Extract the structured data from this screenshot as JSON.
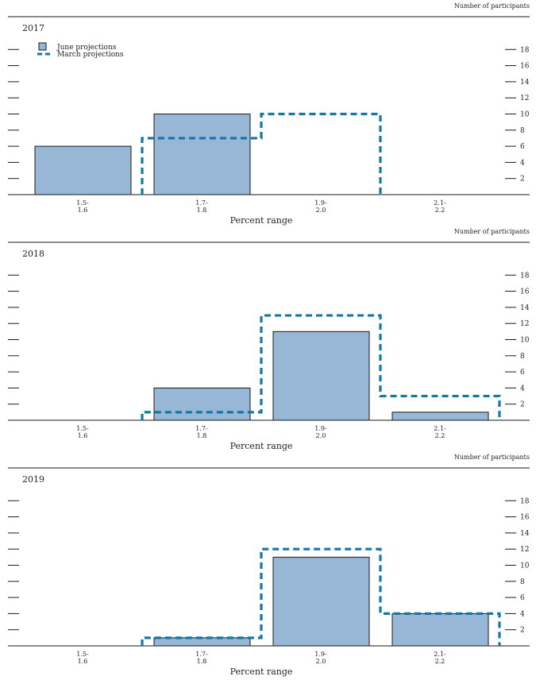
{
  "colors": {
    "june_fill": "#98b6d6",
    "june_stroke": "#1a1a1a",
    "march_stroke": "#1577a8",
    "axis": "#1a1a1a"
  },
  "legend": {
    "june_label": "June projections",
    "march_label": "March projections"
  },
  "chart_data": [
    {
      "type": "bar",
      "title": "2017",
      "ylabel": "Number of participants",
      "xlabel": "Percent range",
      "categories": [
        "1.5-\n1.6",
        "1.7-\n1.8",
        "1.9-\n2.0",
        "2.1-\n2.2"
      ],
      "yticks": [
        2,
        4,
        6,
        8,
        10,
        12,
        14,
        16,
        18
      ],
      "ylim": [
        0,
        20
      ],
      "series": [
        {
          "name": "June projections",
          "style": "bar",
          "values": [
            6,
            10,
            0,
            0
          ]
        },
        {
          "name": "March projections",
          "style": "dashed-step",
          "values": [
            0,
            7,
            10,
            0
          ]
        }
      ],
      "legend": "top-left"
    },
    {
      "type": "bar",
      "title": "2018",
      "ylabel": "Number of participants",
      "xlabel": "Percent range",
      "categories": [
        "1.5-\n1.6",
        "1.7-\n1.8",
        "1.9-\n2.0",
        "2.1-\n2.2"
      ],
      "yticks": [
        2,
        4,
        6,
        8,
        10,
        12,
        14,
        16,
        18
      ],
      "ylim": [
        0,
        20
      ],
      "series": [
        {
          "name": "June projections",
          "style": "bar",
          "values": [
            0,
            4,
            11,
            1
          ]
        },
        {
          "name": "March projections",
          "style": "dashed-step",
          "values": [
            0,
            1,
            13,
            3
          ]
        }
      ]
    },
    {
      "type": "bar",
      "title": "2019",
      "ylabel": "Number of participants",
      "xlabel": "Percent range",
      "categories": [
        "1.5-\n1.6",
        "1.7-\n1.8",
        "1.9-\n2.0",
        "2.1-\n2.2"
      ],
      "yticks": [
        2,
        4,
        6,
        8,
        10,
        12,
        14,
        16,
        18
      ],
      "ylim": [
        0,
        20
      ],
      "series": [
        {
          "name": "June projections",
          "style": "bar",
          "values": [
            0,
            1,
            11,
            4
          ]
        },
        {
          "name": "March projections",
          "style": "dashed-step",
          "values": [
            0,
            1,
            12,
            4
          ]
        }
      ]
    }
  ]
}
